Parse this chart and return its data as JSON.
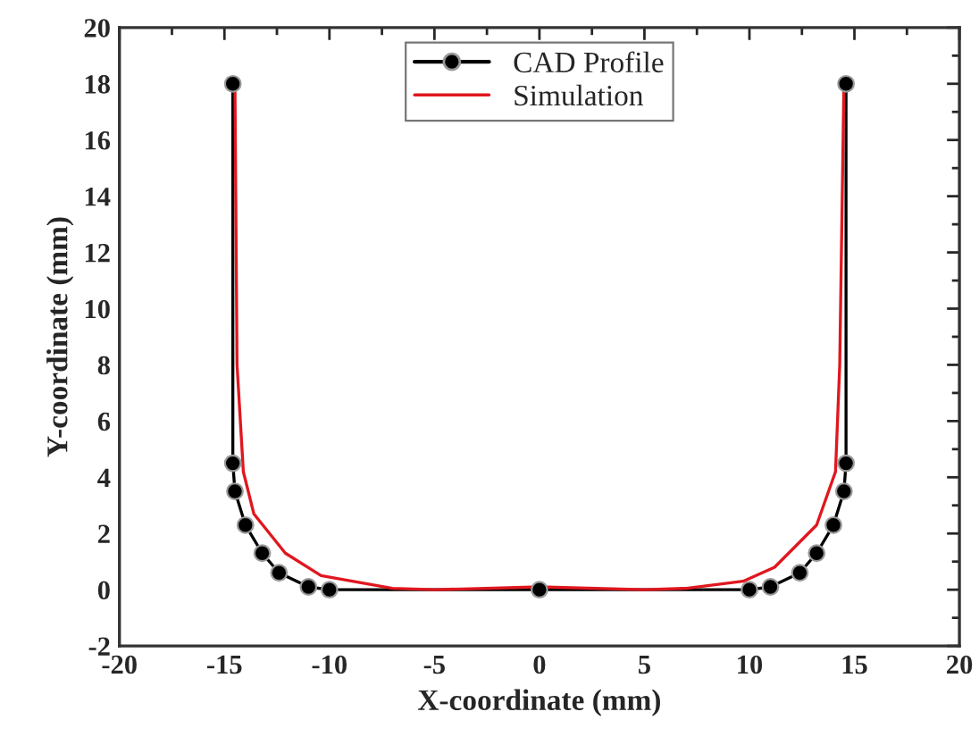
{
  "chart_data": {
    "type": "line",
    "xlabel": "X-coordinate (mm)",
    "ylabel": "Y-coordinate (mm)",
    "xlim": [
      -20,
      20
    ],
    "xticks": [
      -20,
      -15,
      -10,
      -5,
      0,
      5,
      10,
      15,
      20
    ],
    "ylim": [
      -2,
      20
    ],
    "yticks": [
      -2,
      0,
      2,
      4,
      6,
      8,
      10,
      12,
      14,
      16,
      18,
      20
    ],
    "grid": false,
    "legend": "top",
    "series": [
      {
        "name": "CAD Profile",
        "color": "#000000",
        "marker": "circle",
        "x": [
          -14.6,
          -14.6,
          -14.5,
          -14.0,
          -13.2,
          -12.4,
          -11.0,
          -10.0,
          0,
          10.0,
          11.0,
          12.4,
          13.2,
          14.0,
          14.5,
          14.6,
          14.6
        ],
        "values": [
          18,
          4.5,
          3.5,
          2.3,
          1.3,
          0.6,
          0.1,
          0,
          0,
          0,
          0.1,
          0.6,
          1.3,
          2.3,
          3.5,
          4.5,
          18
        ]
      },
      {
        "name": "Simulation",
        "color": "#e0171f",
        "x": [
          -14.5,
          -14.4,
          -14.1,
          -13.6,
          -12.1,
          -10.4,
          -7,
          -5,
          0,
          5,
          7,
          9.7,
          11.2,
          13.2,
          14.1,
          14.3,
          14.5
        ],
        "values": [
          18,
          8,
          4.2,
          2.7,
          1.3,
          0.5,
          0.05,
          0,
          0.1,
          0,
          0.05,
          0.3,
          0.8,
          2.3,
          4.2,
          8,
          18
        ]
      }
    ]
  }
}
